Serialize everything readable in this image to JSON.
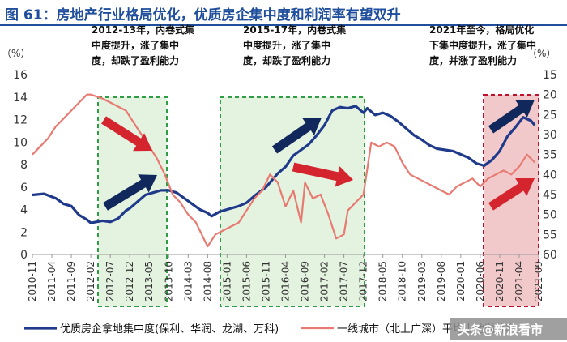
{
  "header": {
    "title": "图 61：房地产行业格局优化，优质房企集中度和利润率有望双升"
  },
  "chart_data": {
    "type": "line",
    "unit_left": "（%）",
    "unit_right": "（%）",
    "y_left": {
      "min": 0,
      "max": 16,
      "ticks": [
        0,
        2,
        4,
        6,
        8,
        10,
        12,
        14,
        16
      ]
    },
    "y_right": {
      "min": 15,
      "max": 60,
      "inverted": true,
      "ticks": [
        15,
        20,
        25,
        30,
        35,
        40,
        45,
        50,
        55,
        60
      ]
    },
    "x_tick_labels": [
      "2010-11",
      "2011-04",
      "2011-09",
      "2012-02",
      "2012-07",
      "2012-12",
      "2013-05",
      "2013-10",
      "2014-03",
      "2014-08",
      "2015-01",
      "2015-06",
      "2015-11",
      "2016-04",
      "2016-09",
      "2017-02",
      "2017-07",
      "2017-12",
      "2018-05",
      "2018-10",
      "2019-03",
      "2019-08",
      "2020-01",
      "2020-06",
      "2020-11",
      "2021-04",
      "2021-09"
    ],
    "series": [
      {
        "name": "优质房企拿地集中度(保利、华润、龙湖、万科)",
        "axis": "left",
        "color": "#1f3a8a",
        "x": [
          0,
          3,
          6,
          8,
          10,
          12,
          14,
          15,
          18,
          20,
          22,
          24,
          25,
          27,
          29,
          31,
          33,
          35,
          37,
          39,
          41,
          43,
          45,
          46,
          48,
          50,
          53,
          55,
          57,
          60,
          63,
          65,
          67,
          69,
          71,
          73,
          75,
          77,
          79,
          81,
          83,
          85,
          86,
          88,
          90,
          92,
          94,
          96,
          98,
          100,
          102,
          104,
          106,
          108,
          110,
          112,
          114,
          116,
          118,
          120,
          122,
          124,
          126,
          128,
          129
        ],
        "y": [
          5.3,
          5.4,
          5.0,
          4.5,
          4.3,
          3.5,
          3.1,
          2.8,
          3.0,
          2.9,
          3.2,
          3.9,
          4.1,
          4.7,
          5.3,
          5.5,
          5.7,
          5.7,
          5.5,
          5.0,
          4.5,
          4.0,
          3.7,
          3.4,
          3.8,
          4.0,
          4.3,
          4.6,
          5.2,
          6.0,
          7.2,
          7.8,
          8.8,
          9.3,
          9.8,
          10.6,
          11.5,
          12.8,
          13.1,
          13.0,
          13.2,
          12.6,
          13.0,
          12.4,
          12.6,
          12.3,
          11.8,
          11.2,
          10.6,
          10.2,
          9.7,
          9.4,
          9.3,
          9.2,
          8.9,
          8.6,
          8.1,
          7.9,
          8.4,
          9.2,
          10.5,
          11.3,
          12.2,
          11.9,
          11.5
        ]
      },
      {
        "name": "一线城市（北上广深）平均土地溢价率",
        "axis": "right",
        "color": "#e87a72",
        "x": [
          0,
          2,
          4,
          6,
          8,
          10,
          12,
          14,
          15,
          18,
          20,
          22,
          24,
          26,
          28,
          30,
          32,
          34,
          36,
          38,
          40,
          42,
          44,
          45,
          47,
          49,
          51,
          53,
          55,
          57,
          59,
          61,
          63,
          65,
          67,
          69,
          70,
          72,
          74,
          76,
          78,
          80,
          81,
          83,
          85,
          87,
          89,
          91,
          93,
          95,
          97,
          99,
          101,
          103,
          105,
          107,
          109,
          111,
          113,
          115,
          117,
          119,
          121,
          123,
          125,
          127,
          129
        ],
        "y": [
          35,
          33,
          31,
          28,
          26,
          24,
          22,
          20,
          20,
          21,
          22,
          23,
          24,
          27,
          30,
          33,
          36,
          40,
          45,
          47,
          50,
          52,
          56,
          58,
          55,
          54,
          53,
          52,
          49,
          46,
          44,
          40,
          42,
          48,
          44,
          52,
          42,
          46,
          45,
          50,
          56,
          55,
          49,
          47,
          45,
          32,
          33,
          32,
          33,
          37,
          40,
          41,
          42,
          43,
          44,
          45,
          43,
          42,
          41,
          43,
          41,
          40,
          39,
          40,
          38,
          35,
          37
        ]
      }
    ],
    "annotations": [
      {
        "lines": [
          "2012-13年，内卷式集",
          "中度提升，涨了集中",
          "度，却跌了盈利能力"
        ]
      },
      {
        "lines": [
          "2015-17年，内卷式集",
          "中度提升，涨了集中",
          "度，却跌了盈利能力"
        ]
      },
      {
        "lines": [
          "2021年至今，格局优化",
          "下集中度提升，涨了集中",
          "度，并涨了盈利能力"
        ]
      }
    ],
    "watermark": "头条@新浪看市"
  },
  "colors": {
    "accent": "#1f4e9c",
    "box_green_fill": "#e4f2e0",
    "box_green_border": "#2e9e44",
    "box_red_fill": "#f2c9cb",
    "box_red_border": "#c0102a",
    "arrow_blue": "#10285c",
    "arrow_red": "#d4242d"
  }
}
